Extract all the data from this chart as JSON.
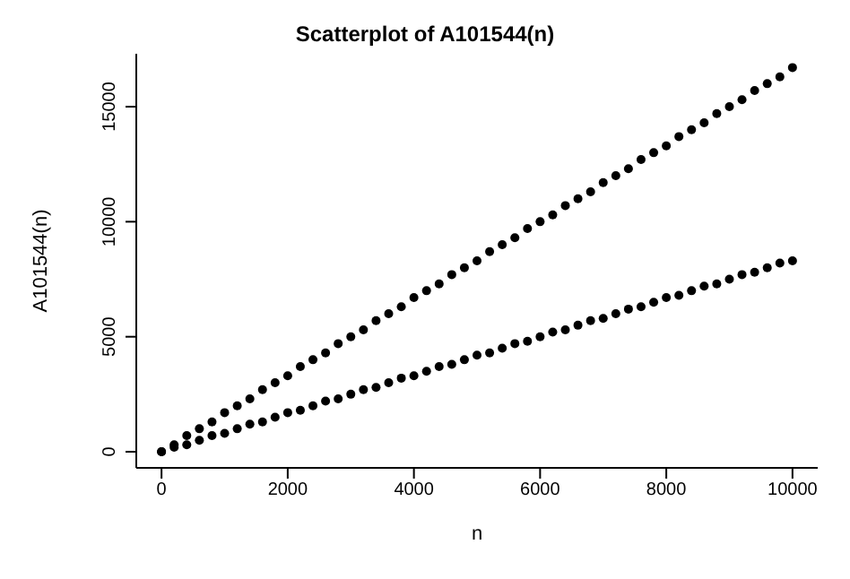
{
  "chart_data": {
    "type": "scatter",
    "title": "Scatterplot of A101544(n)",
    "xlabel": "n",
    "ylabel": "A101544(n)",
    "x": [
      0,
      200,
      400,
      600,
      800,
      1000,
      1200,
      1400,
      1600,
      1800,
      2000,
      2200,
      2400,
      2600,
      2800,
      3000,
      3200,
      3400,
      3600,
      3800,
      4000,
      4200,
      4400,
      4600,
      4800,
      5000,
      5200,
      5400,
      5600,
      5800,
      6000,
      6200,
      6400,
      6600,
      6800,
      7000,
      7200,
      7400,
      7600,
      7800,
      8000,
      8200,
      8400,
      8600,
      8800,
      9000,
      9200,
      9400,
      9600,
      9800,
      10000
    ],
    "series": [
      {
        "color": "#000000",
        "values": [
          0,
          300,
          700,
          1000,
          1300,
          1700,
          2000,
          2300,
          2700,
          3000,
          3300,
          3700,
          4000,
          4300,
          4700,
          5000,
          5300,
          5700,
          6000,
          6300,
          6700,
          7000,
          7300,
          7700,
          8000,
          8300,
          8700,
          9000,
          9300,
          9700,
          10000,
          10300,
          10700,
          11000,
          11300,
          11700,
          12000,
          12300,
          12700,
          13000,
          13300,
          13700,
          14000,
          14300,
          14700,
          15000,
          15300,
          15700,
          16000,
          16300,
          16700
        ]
      },
      {
        "color": "#000000",
        "values": [
          0,
          200,
          300,
          500,
          700,
          800,
          1000,
          1200,
          1300,
          1500,
          1700,
          1800,
          2000,
          2200,
          2300,
          2500,
          2700,
          2800,
          3000,
          3200,
          3300,
          3500,
          3700,
          3800,
          4000,
          4200,
          4300,
          4500,
          4700,
          4800,
          5000,
          5200,
          5300,
          5500,
          5700,
          5800,
          6000,
          6200,
          6300,
          6500,
          6700,
          6800,
          7000,
          7200,
          7300,
          7500,
          7700,
          7800,
          8000,
          8200,
          8300
        ]
      }
    ],
    "xlim": [
      -400,
      10400
    ],
    "xticks": [
      0,
      2000,
      4000,
      6000,
      8000,
      10000
    ],
    "ylim": [
      -700,
      17300
    ],
    "yticks": [
      0,
      5000,
      10000,
      15000
    ],
    "marker": "circle",
    "grid": false
  }
}
